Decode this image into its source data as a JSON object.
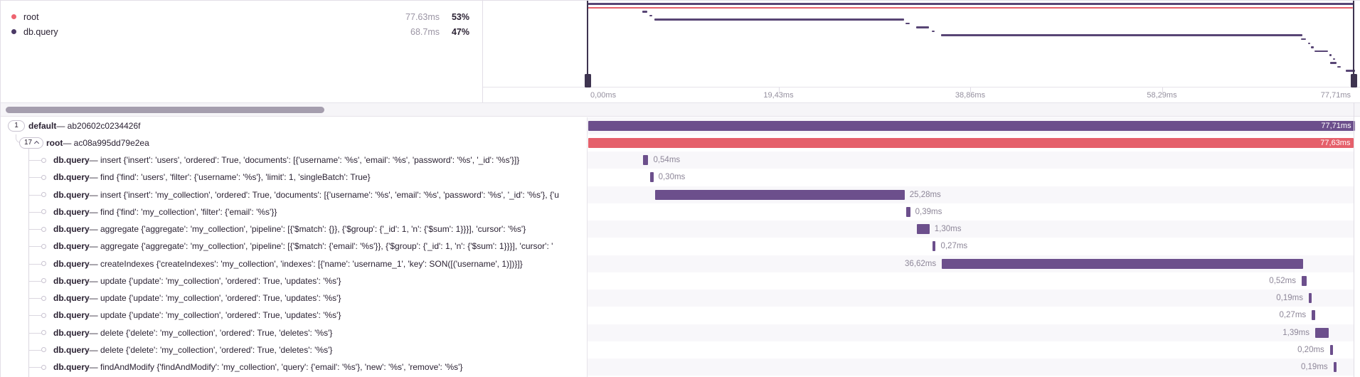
{
  "colors": {
    "purple_bar": "#6c4f8c",
    "red_bar": "#e5606b",
    "minimap_purple": "#584575",
    "minimap_red": "#e5606b",
    "legend_root_dot": "#ee6470",
    "legend_dbquery_dot": "#4b3a66"
  },
  "legend": {
    "items": [
      {
        "label": "root",
        "duration": "77.63ms",
        "percent": "53%",
        "color_key": "legend_root_dot"
      },
      {
        "label": "db.query",
        "duration": "68.7ms",
        "percent": "47%",
        "color_key": "legend_dbquery_dot"
      }
    ]
  },
  "axis": {
    "ticks": [
      "0,00ms",
      "19,43ms",
      "38,86ms",
      "58,29ms",
      "77,71ms"
    ],
    "total_ms": 77.71
  },
  "tree": {
    "separator": "—",
    "rows": [
      {
        "badge": "1",
        "expanded": false,
        "depth": 0,
        "op": "default",
        "desc": "ab20602c0234426f",
        "bar": {
          "start_ms": 0,
          "duration_ms": 77.71,
          "label": "77,71ms",
          "label_pos": "inside",
          "color": "purple"
        }
      },
      {
        "badge": "17",
        "expanded": true,
        "depth": 1,
        "op": "root",
        "desc": "ac08a995dd79e2ea",
        "bar": {
          "start_ms": 0,
          "duration_ms": 77.63,
          "label": "77,63ms",
          "label_pos": "inside",
          "color": "red"
        }
      },
      {
        "depth": 2,
        "op": "db.query",
        "desc": "insert {'insert': 'users', 'ordered': True, 'documents': [{'username': '%s', 'email': '%s', 'password': '%s', '_id': '%s'}]}",
        "bar": {
          "start_ms": 5.55,
          "duration_ms": 0.54,
          "label": "0,54ms",
          "label_pos": "after",
          "color": "purple"
        }
      },
      {
        "depth": 2,
        "op": "db.query",
        "desc": "find {'find': 'users', 'filter': {'username': '%s'}, 'limit': 1, 'singleBatch': True}",
        "bar": {
          "start_ms": 6.28,
          "duration_ms": 0.3,
          "label": "0,30ms",
          "label_pos": "after",
          "color": "purple"
        }
      },
      {
        "depth": 2,
        "op": "db.query",
        "desc": "insert {'insert': 'my_collection', 'ordered': True, 'documents': [{'username': '%s', 'email': '%s', 'password': '%s', '_id': '%s'}, {'u",
        "bar": {
          "start_ms": 6.79,
          "duration_ms": 25.28,
          "label": "25,28ms",
          "label_pos": "after",
          "color": "purple"
        }
      },
      {
        "depth": 2,
        "op": "db.query",
        "desc": "find {'find': 'my_collection', 'filter': {'email': '%s'}}",
        "bar": {
          "start_ms": 32.25,
          "duration_ms": 0.39,
          "label": "0,39ms",
          "label_pos": "after",
          "color": "purple"
        }
      },
      {
        "depth": 2,
        "op": "db.query",
        "desc": "aggregate {'aggregate': 'my_collection', 'pipeline': [{'$match': {}}, {'$group': {'_id': 1, 'n': {'$sum': 1}}}], 'cursor': '%s'}",
        "bar": {
          "start_ms": 33.3,
          "duration_ms": 1.3,
          "label": "1,30ms",
          "label_pos": "after",
          "color": "purple"
        }
      },
      {
        "depth": 2,
        "op": "db.query",
        "desc": "aggregate {'aggregate': 'my_collection', 'pipeline': [{'$match': {'email': '%s'}}, {'$group': {'_id': 1, 'n': {'$sum': 1}}}], 'cursor': '",
        "bar": {
          "start_ms": 34.9,
          "duration_ms": 0.27,
          "label": "0,27ms",
          "label_pos": "after",
          "color": "purple"
        }
      },
      {
        "depth": 2,
        "op": "db.query",
        "desc": "createIndexes {'createIndexes': 'my_collection', 'indexes': [{'name': 'username_1', 'key': SON([('username', 1)])}]}",
        "bar": {
          "start_ms": 35.85,
          "duration_ms": 36.62,
          "label": "36,62ms",
          "label_pos": "before",
          "color": "purple"
        }
      },
      {
        "depth": 2,
        "op": "db.query",
        "desc": "update {'update': 'my_collection', 'ordered': True, 'updates': '%s'}",
        "bar": {
          "start_ms": 72.33,
          "duration_ms": 0.52,
          "label": "0,52ms",
          "label_pos": "before",
          "color": "purple"
        }
      },
      {
        "depth": 2,
        "op": "db.query",
        "desc": "update {'update': 'my_collection', 'ordered': True, 'updates': '%s'}",
        "bar": {
          "start_ms": 73.05,
          "duration_ms": 0.19,
          "label": "0,19ms",
          "label_pos": "before",
          "color": "purple"
        }
      },
      {
        "depth": 2,
        "op": "db.query",
        "desc": "update {'update': 'my_collection', 'ordered': True, 'updates': '%s'}",
        "bar": {
          "start_ms": 73.35,
          "duration_ms": 0.27,
          "label": "0,27ms",
          "label_pos": "before",
          "color": "purple"
        }
      },
      {
        "depth": 2,
        "op": "db.query",
        "desc": "delete {'delete': 'my_collection', 'ordered': True, 'deletes': '%s'}",
        "bar": {
          "start_ms": 73.7,
          "duration_ms": 1.39,
          "label": "1,39ms",
          "label_pos": "before",
          "color": "purple"
        }
      },
      {
        "depth": 2,
        "op": "db.query",
        "desc": "delete {'delete': 'my_collection', 'ordered': True, 'deletes': '%s'}",
        "bar": {
          "start_ms": 75.2,
          "duration_ms": 0.2,
          "label": "0,20ms",
          "label_pos": "before",
          "color": "purple"
        }
      },
      {
        "depth": 2,
        "op": "db.query",
        "desc": "findAndModify {'findAndModify': 'my_collection', 'query': {'email': '%s'}, 'new': '%s', 'remove': '%s'}",
        "bar": {
          "start_ms": 75.55,
          "duration_ms": 0.19,
          "label": "0,19ms",
          "label_pos": "before",
          "color": "purple"
        }
      },
      {
        "depth": 2,
        "op": "",
        "desc": "",
        "bar": {
          "start_ms": 75.3,
          "duration_ms": 0.62,
          "label": "",
          "label_pos": "none",
          "color": "purple"
        }
      }
    ]
  },
  "minimap": {
    "extra_spans": [
      {
        "row": 16,
        "start_ms": 76.0,
        "duration_ms": 0.4
      },
      {
        "row": 17,
        "start_ms": 76.9,
        "duration_ms": 0.9
      }
    ]
  }
}
